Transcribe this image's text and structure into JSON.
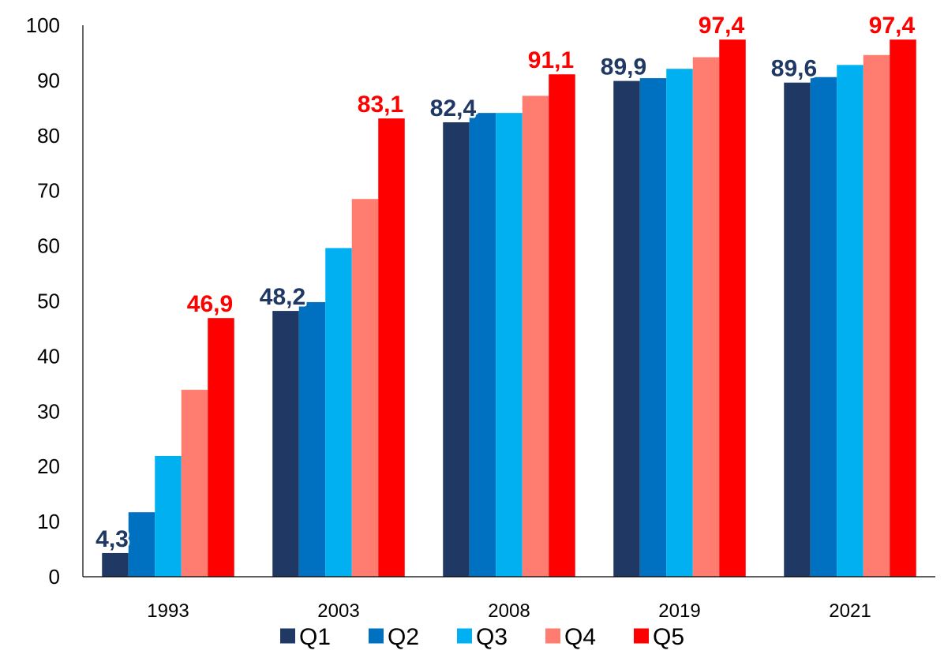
{
  "chart_data": {
    "type": "bar",
    "title": "",
    "xlabel": "",
    "ylabel": "",
    "ylim": [
      0,
      100
    ],
    "yticks": [
      0,
      10,
      20,
      30,
      40,
      50,
      60,
      70,
      80,
      90,
      100
    ],
    "categories": [
      "1993",
      "2003",
      "2008",
      "2019",
      "2021"
    ],
    "series": [
      {
        "name": "Q1",
        "color": "#203864",
        "values": [
          4.3,
          48.2,
          82.4,
          89.9,
          89.6
        ]
      },
      {
        "name": "Q2",
        "color": "#0070C0",
        "values": [
          11.7,
          49.8,
          84.1,
          90.4,
          90.6
        ]
      },
      {
        "name": "Q3",
        "color": "#00B0F0",
        "values": [
          21.9,
          59.6,
          84.1,
          92.1,
          92.8
        ]
      },
      {
        "name": "Q4",
        "color": "#FF7C70",
        "values": [
          33.9,
          68.5,
          87.2,
          94.2,
          94.6
        ]
      },
      {
        "name": "Q5",
        "color": "#FF0000",
        "values": [
          46.9,
          83.1,
          91.1,
          97.4,
          97.4
        ]
      }
    ],
    "data_labels": [
      {
        "category_index": 0,
        "series_index": 0,
        "text": "4,3",
        "color": "#203864"
      },
      {
        "category_index": 0,
        "series_index": 4,
        "text": "46,9",
        "color": "#FF0000"
      },
      {
        "category_index": 1,
        "series_index": 0,
        "text": "48,2",
        "color": "#203864"
      },
      {
        "category_index": 1,
        "series_index": 4,
        "text": "83,1",
        "color": "#FF0000"
      },
      {
        "category_index": 2,
        "series_index": 0,
        "text": "82,4",
        "color": "#203864"
      },
      {
        "category_index": 2,
        "series_index": 4,
        "text": "91,1",
        "color": "#FF0000"
      },
      {
        "category_index": 3,
        "series_index": 0,
        "text": "89,9",
        "color": "#203864"
      },
      {
        "category_index": 3,
        "series_index": 4,
        "text": "97,4",
        "color": "#FF0000"
      },
      {
        "category_index": 4,
        "series_index": 0,
        "text": "89,6",
        "color": "#203864"
      },
      {
        "category_index": 4,
        "series_index": 4,
        "text": "97,4",
        "color": "#FF0000"
      }
    ],
    "grid": false,
    "legend_position": "bottom"
  }
}
